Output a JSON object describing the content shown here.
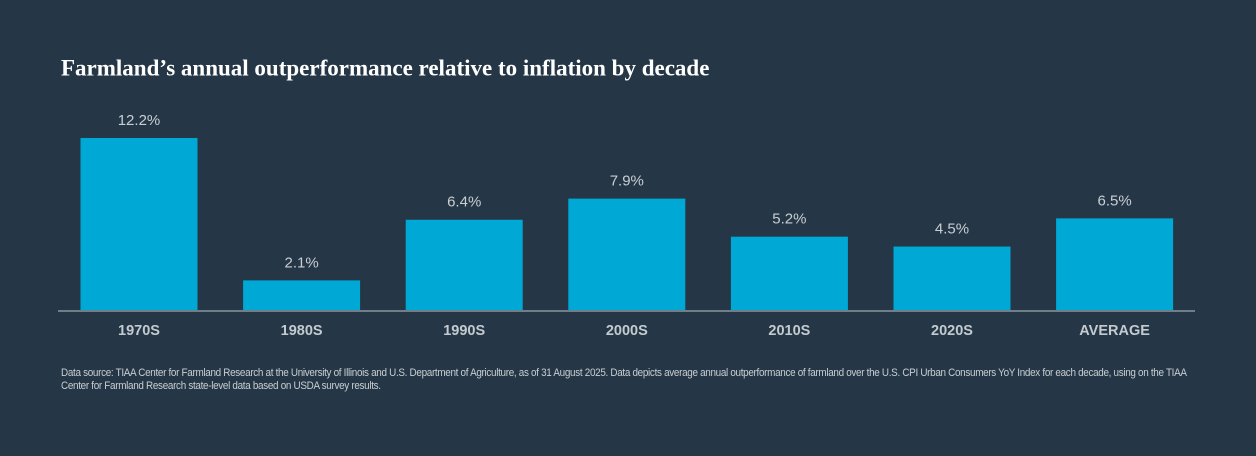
{
  "chart_data": {
    "type": "bar",
    "title": "Farmland’s annual outperformance relative to inflation by decade",
    "categories": [
      "1970S",
      "1980S",
      "1990S",
      "2000S",
      "2010S",
      "2020S",
      "AVERAGE"
    ],
    "values": [
      12.2,
      2.1,
      6.4,
      7.9,
      5.2,
      4.5,
      6.5
    ],
    "value_labels": [
      "12.2%",
      "2.1%",
      "6.4%",
      "7.9%",
      "5.2%",
      "4.5%",
      "6.5%"
    ],
    "color": "#00a8d6",
    "note": "Data source: TIAA Center for Farmland Research at the University of Illinois and U.S. Department of Agriculture, as of 31 August 2025. Data depicts average annual outperformance of farmland over the U.S. CPI Urban Consumers YoY Index for each decade, using on the TIAA Center for Farmland Research state-level data based on USDA survey results."
  }
}
